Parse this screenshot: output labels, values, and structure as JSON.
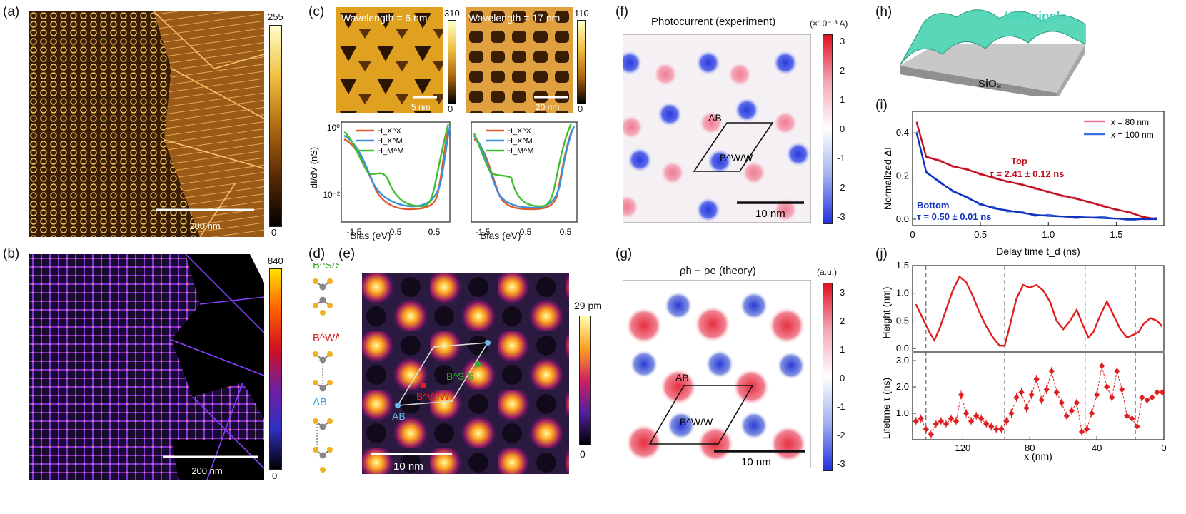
{
  "panels": {
    "a": {
      "label": "(a)",
      "scale_label": "200 nm",
      "cbar_max": "255",
      "cbar_min": "0"
    },
    "b": {
      "label": "(b)",
      "scale_label": "200 nm",
      "cbar_max": "840",
      "cbar_min": "0"
    },
    "c": {
      "label": "(c)",
      "left_title": "Wavelength = 6 nm",
      "left_scale": "5 nm",
      "left_cmax": "310",
      "left_cmin": "0",
      "right_title": "Wavelength = 17 nm",
      "right_scale": "20 nm",
      "right_cmax": "110",
      "right_cmin": "0",
      "ylabel": "dI/dV (nS)",
      "xlabel": "Bias (eV)",
      "ytick_top": "10⁰",
      "ytick_bottom": "10⁻²",
      "xticks": [
        "-1.5",
        "-0.5",
        "0.5"
      ],
      "legend": [
        "H_X^X",
        "H_X^M",
        "H_M^M"
      ]
    },
    "d": {
      "label": "(d)",
      "stackings": [
        "B^S/S",
        "B^W/W",
        "AB"
      ]
    },
    "e": {
      "label": "(e)",
      "cbar_max": "29 pm",
      "cbar_min": "0",
      "scale_label": "10 nm",
      "markers": [
        "AB",
        "B^W/W",
        "B^S/S"
      ]
    },
    "f": {
      "label": "(f)",
      "title": "Photocurrent (experiment)",
      "unit": "(×10⁻¹³ A)",
      "ticks": [
        "3",
        "2",
        "1",
        "0",
        "-1",
        "-2",
        "-3"
      ],
      "scale_label": "10 nm",
      "site_ab": "AB",
      "site_bww": "B^W/W"
    },
    "g": {
      "label": "(g)",
      "title": "ρh − ρe (theory)",
      "unit": "(a.u.)",
      "ticks": [
        "3",
        "2",
        "1",
        "0",
        "-1",
        "-2",
        "-3"
      ],
      "scale_label": "10 nm",
      "site_ab": "AB",
      "site_bww": "B^W/W"
    },
    "h": {
      "label": "(h)",
      "ripple_label": "WS₂ ripple",
      "substrate_label": "SiO₂"
    },
    "i": {
      "label": "(i)",
      "ylabel": "Normalized ΔI",
      "xlabel": "Delay time t_d (ns)",
      "legend": [
        "x = 80 nm",
        "x = 100 nm"
      ],
      "top_label": "Top",
      "top_tau": "τ = 2.41 ± 0.12 ns",
      "bottom_label": "Bottom",
      "bottom_tau": "τ = 0.50 ± 0.01 ns"
    },
    "j": {
      "label": "(j)",
      "ylabel_top": "Height (nm)",
      "ylabel_bottom": "Lifetime τ (ns)",
      "xlabel": "x (nm)"
    }
  },
  "chart_data": [
    {
      "type": "line",
      "title": "",
      "xlabel": "Delay time t_d (ns)",
      "ylabel": "Normalized ΔI",
      "xlim": [
        0,
        1.85
      ],
      "ylim": [
        -0.03,
        0.5
      ],
      "xticks": [
        0,
        0.5,
        1.0,
        1.5
      ],
      "yticks": [
        0.0,
        0.2,
        0.4
      ],
      "series": [
        {
          "name": "x = 80 nm",
          "color": "#e8748f",
          "x": [
            0.03,
            0.1,
            0.2,
            0.3,
            0.4,
            0.5,
            0.6,
            0.7,
            0.8,
            0.9,
            1.0,
            1.1,
            1.2,
            1.3,
            1.4,
            1.5,
            1.6,
            1.7,
            1.8
          ],
          "y": [
            0.45,
            0.29,
            0.27,
            0.245,
            0.23,
            0.21,
            0.19,
            0.175,
            0.16,
            0.145,
            0.125,
            0.11,
            0.095,
            0.08,
            0.06,
            0.045,
            0.03,
            0.01,
            0.0
          ]
        },
        {
          "name": "x = 100 nm",
          "color": "#3a6fe0",
          "x": [
            0.03,
            0.1,
            0.2,
            0.3,
            0.4,
            0.5,
            0.6,
            0.7,
            0.8,
            0.9,
            1.0,
            1.2,
            1.4,
            1.6,
            1.8
          ],
          "y": [
            0.4,
            0.22,
            0.17,
            0.13,
            0.1,
            0.07,
            0.05,
            0.04,
            0.03,
            0.02,
            0.015,
            0.01,
            0.005,
            0.0,
            0.0
          ]
        }
      ]
    },
    {
      "type": "line",
      "title": "",
      "xlabel": "x (nm)",
      "ylabel": "Height (nm)",
      "xlim": [
        150,
        0
      ],
      "ylim": [
        -0.05,
        1.5
      ],
      "xticks": [
        120,
        80,
        40,
        0
      ],
      "yticks": [
        0.0,
        0.5,
        1.0,
        1.5
      ],
      "series": [
        {
          "name": "Height",
          "color": "#e02020",
          "x": [
            148,
            144,
            140,
            137,
            134,
            130,
            126,
            122,
            118,
            114,
            110,
            106,
            102,
            98,
            95,
            92,
            88,
            84,
            80,
            76,
            72,
            68,
            64,
            60,
            56,
            52,
            48,
            45,
            42,
            38,
            34,
            30,
            26,
            22,
            18,
            15,
            12,
            8,
            4,
            1
          ],
          "y": [
            0.8,
            0.55,
            0.3,
            0.15,
            0.35,
            0.7,
            1.05,
            1.3,
            1.2,
            0.95,
            0.65,
            0.4,
            0.2,
            0.05,
            0.05,
            0.4,
            0.9,
            1.15,
            1.1,
            1.15,
            1.05,
            0.85,
            0.5,
            0.35,
            0.5,
            0.7,
            0.4,
            0.2,
            0.3,
            0.6,
            0.85,
            0.6,
            0.35,
            0.2,
            0.25,
            0.3,
            0.45,
            0.55,
            0.5,
            0.4
          ]
        }
      ]
    },
    {
      "type": "scatter",
      "title": "",
      "xlabel": "x (nm)",
      "ylabel": "Lifetime τ (ns)",
      "xlim": [
        150,
        0
      ],
      "ylim": [
        0,
        3.3
      ],
      "xticks": [
        120,
        80,
        40,
        0
      ],
      "yticks": [
        1.0,
        2.0,
        3.0
      ],
      "series": [
        {
          "name": "Lifetime",
          "color": "#e02020",
          "x": [
            148,
            145,
            142,
            139,
            136,
            133,
            130,
            127,
            124,
            121,
            118,
            115,
            112,
            109,
            106,
            103,
            100,
            97,
            94,
            91,
            88,
            85,
            82,
            79,
            76,
            73,
            70,
            67,
            64,
            61,
            58,
            55,
            52,
            49,
            46,
            43,
            40,
            37,
            34,
            31,
            28,
            25,
            22,
            19,
            16,
            13,
            10,
            7,
            4,
            1
          ],
          "y": [
            0.7,
            0.8,
            0.4,
            0.2,
            0.6,
            0.7,
            0.6,
            0.8,
            0.7,
            1.7,
            1.0,
            0.7,
            0.9,
            0.8,
            0.6,
            0.5,
            0.4,
            0.4,
            0.7,
            1.0,
            1.6,
            1.8,
            1.2,
            1.7,
            2.3,
            1.5,
            1.9,
            2.6,
            1.8,
            1.4,
            0.9,
            1.1,
            1.4,
            0.3,
            0.4,
            1.0,
            1.7,
            2.8,
            2.0,
            1.6,
            2.6,
            1.9,
            0.9,
            0.8,
            0.5,
            1.6,
            1.5,
            1.6,
            1.8,
            1.8
          ]
        }
      ]
    }
  ]
}
